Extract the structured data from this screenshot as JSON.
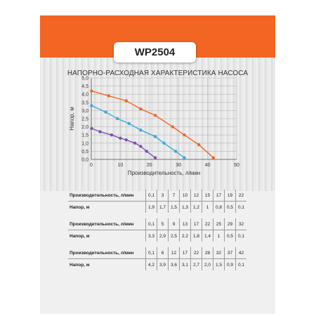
{
  "header": {
    "model": "WP2504"
  },
  "chart_data": {
    "type": "line",
    "title": "НАПОРНО-РАСХОДНАЯ ХАРАКТЕРИСТИКА НАСОСА",
    "xlabel": "Производительность, л/мин",
    "ylabel": "Напор, м",
    "xlim": [
      0,
      50
    ],
    "ylim": [
      0,
      5.0
    ],
    "x_ticks": [
      "0",
      "10",
      "20",
      "30",
      "40",
      "50"
    ],
    "y_ticks": [
      "0,0",
      "0,5",
      "1,0",
      "1,5",
      "2,0",
      "2,5",
      "3,0",
      "3,5",
      "4,0",
      "4,5",
      "5,0"
    ],
    "grid": true,
    "series": [
      {
        "color": "#f26522",
        "x": [
          0.1,
          6,
          12,
          17,
          22,
          28,
          32,
          37,
          42
        ],
        "y": [
          4.2,
          3.9,
          3.6,
          3.1,
          2.7,
          2.0,
          1.5,
          0.9,
          0.1
        ]
      },
      {
        "color": "#3aaad6",
        "x": [
          0.1,
          5,
          9,
          13,
          17,
          22,
          25,
          29,
          32
        ],
        "y": [
          3.3,
          2.9,
          2.5,
          2.2,
          1.8,
          1.4,
          1.0,
          0.5,
          0.1
        ]
      },
      {
        "color": "#7d4fb0",
        "x": [
          0.1,
          3,
          7,
          10,
          12,
          15,
          17,
          19,
          22
        ],
        "y": [
          1.9,
          1.7,
          1.5,
          1.3,
          1.2,
          1.0,
          0.8,
          0.5,
          0.1
        ]
      }
    ]
  },
  "tables": [
    {
      "flow_label": "Производительность, л/мин",
      "head_label": "Напор, м",
      "flow": [
        "0,1",
        "3",
        "7",
        "10",
        "12",
        "15",
        "17",
        "19",
        "22"
      ],
      "head": [
        "1,9",
        "1,7",
        "1,5",
        "1,3",
        "1,2",
        "1",
        "0,8",
        "0,5",
        "0,1"
      ]
    },
    {
      "flow_label": "Производительность, л/мин",
      "head_label": "Напор, м",
      "flow": [
        "0,1",
        "5",
        "9",
        "13",
        "17",
        "22",
        "25",
        "29",
        "32"
      ],
      "head": [
        "3,3",
        "2,9",
        "2,5",
        "2,2",
        "1,8",
        "1,4",
        "1",
        "0,5",
        "0,1"
      ]
    },
    {
      "flow_label": "Производительность, л/мин",
      "head_label": "Напор, м",
      "flow": [
        "0,1",
        "6",
        "12",
        "17",
        "22",
        "28",
        "32",
        "37",
        "42"
      ],
      "head": [
        "4,2",
        "3,9",
        "3,6",
        "3,1",
        "2,7",
        "2,0",
        "1,5",
        "0,9",
        "0,1"
      ]
    }
  ]
}
